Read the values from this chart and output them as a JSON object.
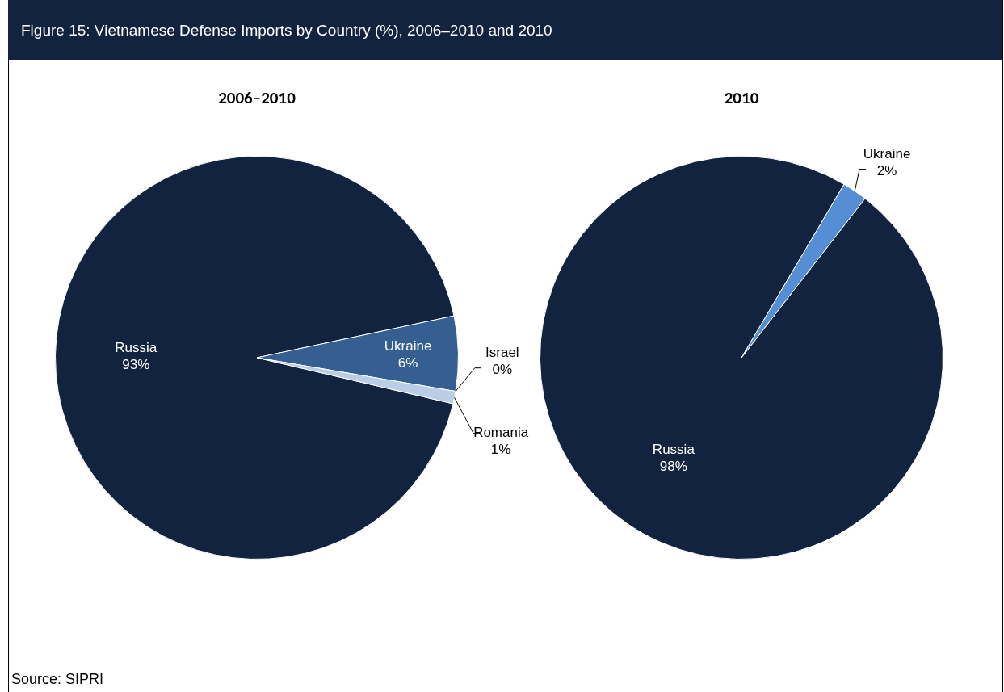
{
  "chart_data": [
    {
      "type": "other",
      "title": "Figure 15: Vietnamese Defense Imports by Country (%), 2006–2010 and 2010"
    },
    {
      "type": "pie",
      "title": "2006–2010",
      "categories": [
        "Russia",
        "Ukraine",
        "Israel",
        "Romania"
      ],
      "values": [
        93,
        6,
        0,
        1
      ],
      "value_labels": [
        "93%",
        "6%",
        "0%",
        "1%"
      ],
      "colors": [
        "#12233f",
        "#365f91",
        "#8db3e2",
        "#b9cde5"
      ],
      "annotations": [
        "Source: SIPRI"
      ]
    },
    {
      "type": "pie",
      "title": "2010",
      "categories": [
        "Russia",
        "Ukraine"
      ],
      "values": [
        98,
        2
      ],
      "value_labels": [
        "98%",
        "2%"
      ],
      "colors": [
        "#12233f",
        "#558ed5"
      ]
    }
  ]
}
